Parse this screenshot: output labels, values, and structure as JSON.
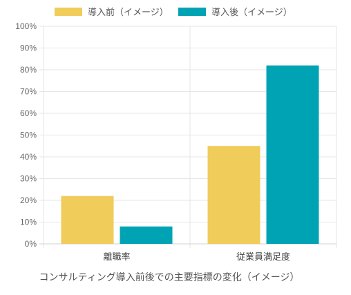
{
  "chart_data": {
    "type": "bar",
    "categories": [
      "離職率",
      "従業員満足度"
    ],
    "series": [
      {
        "name": "導入前（イメージ）",
        "values": [
          22,
          45
        ],
        "color": "#F0CC5A"
      },
      {
        "name": "導入後（イメージ）",
        "values": [
          8,
          82
        ],
        "color": "#00A3B4"
      }
    ],
    "ylim": [
      0,
      100
    ],
    "yticks": [
      "0%",
      "10%",
      "20%",
      "30%",
      "40%",
      "50%",
      "60%",
      "70%",
      "80%",
      "90%",
      "100%"
    ],
    "caption": "コンサルティング導入前後での主要指標の変化（イメージ）",
    "legend_position": "top",
    "grid": true
  }
}
